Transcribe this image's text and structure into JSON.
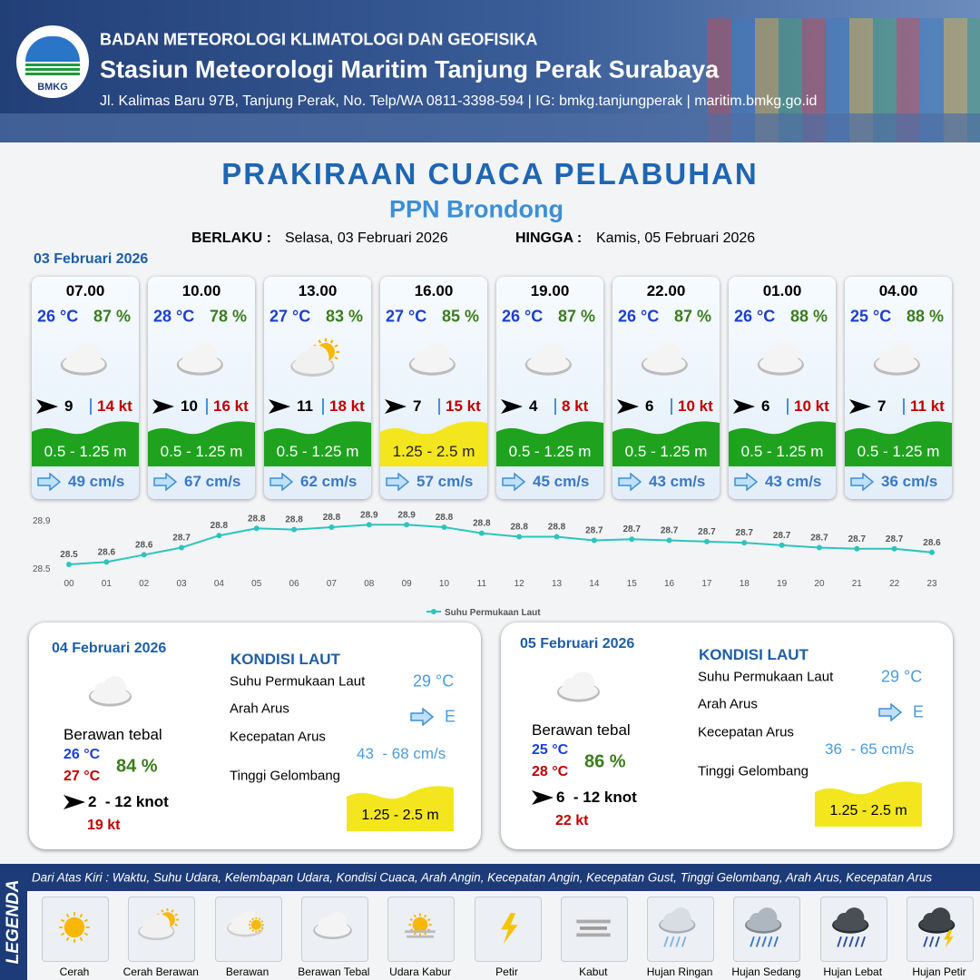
{
  "header": {
    "logo_text": "BMKG",
    "agency": "BADAN METEOROLOGI KLIMATOLOGI DAN GEOFISIKA",
    "station": "Stasiun Meteorologi Maritim Tanjung Perak Surabaya",
    "address": "Jl. Kalimas Baru 97B, Tanjung Perak, No. Telp/WA 0811-3398-594 | IG: bmkg.tanjungperak | maritim.bmkg.go.id"
  },
  "title": "PRAKIRAAN CUACA PELABUHAN",
  "subtitle": "PPN Brondong",
  "validity": {
    "from_label": "BERLAKU :",
    "from": "Selasa, 03 Februari 2026",
    "to_label": "HINGGA :",
    "to": "Kamis, 05 Februari 2026"
  },
  "day1_date": "03 Februari 2026",
  "forecasts": [
    {
      "time": "07.00",
      "temp": "26 °C",
      "humidity": "87 %",
      "condition": "Berawan Tebal",
      "wind": "9",
      "gust": "14 kt",
      "wave": "0.5 - 1.25 m",
      "wave_color": "#1fa31f",
      "current": "49 cm/s"
    },
    {
      "time": "10.00",
      "temp": "28 °C",
      "humidity": "78 %",
      "condition": "Berawan Tebal",
      "wind": "10",
      "gust": "16 kt",
      "wave": "0.5 - 1.25 m",
      "wave_color": "#1fa31f",
      "current": "67 cm/s"
    },
    {
      "time": "13.00",
      "temp": "27 °C",
      "humidity": "83 %",
      "condition": "Cerah Berawan",
      "wind": "11",
      "gust": "18 kt",
      "wave": "0.5 - 1.25 m",
      "wave_color": "#1fa31f",
      "current": "62 cm/s"
    },
    {
      "time": "16.00",
      "temp": "27 °C",
      "humidity": "85 %",
      "condition": "Berawan Tebal",
      "wind": "7",
      "gust": "15 kt",
      "wave": "1.25 - 2.5 m",
      "wave_color": "#f4e61e",
      "current": "57 cm/s"
    },
    {
      "time": "19.00",
      "temp": "26 °C",
      "humidity": "87 %",
      "condition": "Berawan Tebal",
      "wind": "4",
      "gust": "8 kt",
      "wave": "0.5 - 1.25 m",
      "wave_color": "#1fa31f",
      "current": "45 cm/s"
    },
    {
      "time": "22.00",
      "temp": "26 °C",
      "humidity": "87 %",
      "condition": "Berawan Tebal",
      "wind": "6",
      "gust": "10 kt",
      "wave": "0.5 - 1.25 m",
      "wave_color": "#1fa31f",
      "current": "43 cm/s"
    },
    {
      "time": "01.00",
      "temp": "26 °C",
      "humidity": "88 %",
      "condition": "Berawan Tebal",
      "wind": "6",
      "gust": "10 kt",
      "wave": "0.5 - 1.25 m",
      "wave_color": "#1fa31f",
      "current": "43 cm/s"
    },
    {
      "time": "04.00",
      "temp": "25 °C",
      "humidity": "88 %",
      "condition": "Berawan Tebal",
      "wind": "7",
      "gust": "11 kt",
      "wave": "0.5 - 1.25 m",
      "wave_color": "#1fa31f",
      "current": "36 cm/s"
    }
  ],
  "chart_data": {
    "type": "line",
    "categories": [
      "00",
      "01",
      "02",
      "03",
      "04",
      "05",
      "06",
      "07",
      "08",
      "09",
      "10",
      "11",
      "12",
      "13",
      "14",
      "15",
      "16",
      "17",
      "18",
      "19",
      "20",
      "21",
      "22",
      "23"
    ],
    "series": [
      {
        "name": "Suhu Permukaan Laut",
        "color": "#2cc5bd",
        "values": [
          28.53,
          28.55,
          28.61,
          28.67,
          28.77,
          28.83,
          28.82,
          28.84,
          28.86,
          28.86,
          28.84,
          28.79,
          28.76,
          28.76,
          28.73,
          28.74,
          28.73,
          28.72,
          28.71,
          28.69,
          28.67,
          28.66,
          28.66,
          28.63
        ],
        "value_labels": [
          "28.5",
          "28.6",
          "28.6",
          "28.7",
          "28.8",
          "28.8",
          "28.8",
          "28.8",
          "28.9",
          "28.9",
          "28.8",
          "28.8",
          "28.8",
          "28.8",
          "28.7",
          "28.7",
          "28.7",
          "28.7",
          "28.7",
          "28.7",
          "28.7",
          "28.7",
          "28.7",
          "28.6"
        ]
      }
    ],
    "ylim": [
      28.5,
      28.9
    ],
    "yticks": [
      28.5,
      28.9
    ],
    "grid": false,
    "legend": "bottom"
  },
  "days": [
    {
      "date": "04 Februari 2026",
      "condition": "Berawan tebal",
      "temp_min": "26 °C",
      "temp_max": "27 °C",
      "humidity": "84 %",
      "wind": "2  - 12 knot",
      "gust": "19 kt",
      "heading": "KONDISI LAUT",
      "sst_label": "Suhu Permukaan Laut",
      "sst": "29 °C",
      "dir_label": "Arah Arus",
      "dir": "E",
      "speed_label": "Kecepatan Arus",
      "speed": "43  - 68 cm/s",
      "wave_label": "Tinggi Gelombang",
      "wave": "1.25 - 2.5 m"
    },
    {
      "date": "05 Februari 2026",
      "condition": "Berawan tebal",
      "temp_min": "25 °C",
      "temp_max": "28 °C",
      "humidity": "86 %",
      "wind": "6  - 12 knot",
      "gust": "22 kt",
      "heading": "KONDISI LAUT",
      "sst_label": "Suhu Permukaan Laut",
      "sst": "29 °C",
      "dir_label": "Arah Arus",
      "dir": "E",
      "speed_label": "Kecepatan Arus",
      "speed": "36  - 65 cm/s",
      "wave_label": "Tinggi Gelombang",
      "wave": "1.25 - 2.5 m"
    }
  ],
  "legend": {
    "title": "LEGENDA",
    "description": "Dari Atas Kiri : Waktu, Suhu Udara, Kelembapan Udara, Kondisi Cuaca, Arah Angin, Kecepatan Angin, Kecepatan Gust, Tinggi Gelombang, Arah Arus, Kecepatan Arus",
    "items": [
      "Cerah",
      "Cerah Berawan",
      "Berawan",
      "Berawan Tebal",
      "Udara Kabur",
      "Petir",
      "Kabut",
      "Hujan Ringan",
      "Hujan Sedang",
      "Hujan Lebat",
      "Hujan Petir"
    ]
  }
}
